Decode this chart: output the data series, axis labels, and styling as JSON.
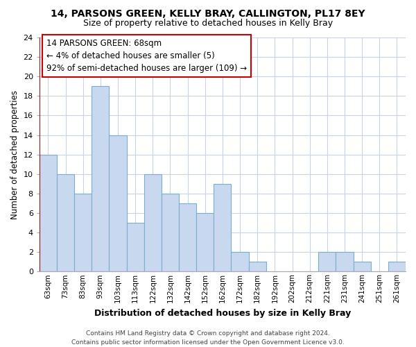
{
  "title": "14, PARSONS GREEN, KELLY BRAY, CALLINGTON, PL17 8EY",
  "subtitle": "Size of property relative to detached houses in Kelly Bray",
  "xlabel": "Distribution of detached houses by size in Kelly Bray",
  "ylabel": "Number of detached properties",
  "bar_labels": [
    "63sqm",
    "73sqm",
    "83sqm",
    "93sqm",
    "103sqm",
    "113sqm",
    "122sqm",
    "132sqm",
    "142sqm",
    "152sqm",
    "162sqm",
    "172sqm",
    "182sqm",
    "192sqm",
    "202sqm",
    "212sqm",
    "221sqm",
    "231sqm",
    "241sqm",
    "251sqm",
    "261sqm"
  ],
  "bar_values": [
    12,
    10,
    8,
    19,
    14,
    5,
    10,
    8,
    7,
    6,
    9,
    2,
    1,
    0,
    0,
    0,
    2,
    2,
    1,
    0,
    1
  ],
  "bar_color": "#c8d8ee",
  "bar_edge_color": "#7aadd4",
  "highlight_color": "#cc0000",
  "ylim": [
    0,
    24
  ],
  "yticks": [
    0,
    2,
    4,
    6,
    8,
    10,
    12,
    14,
    16,
    18,
    20,
    22,
    24
  ],
  "annotation_title": "14 PARSONS GREEN: 68sqm",
  "annotation_line1": "← 4% of detached houses are smaller (5)",
  "annotation_line2": "92% of semi-detached houses are larger (109) →",
  "annotation_box_color": "#ffffff",
  "annotation_border_color": "#cc0000",
  "footer_line1": "Contains HM Land Registry data © Crown copyright and database right 2024.",
  "footer_line2": "Contains public sector information licensed under the Open Government Licence v3.0.",
  "background_color": "#ffffff",
  "grid_color": "#c8d4e4"
}
